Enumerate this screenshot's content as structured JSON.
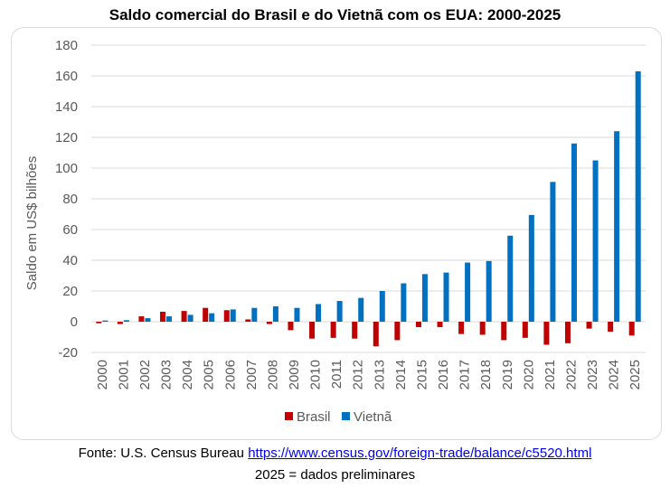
{
  "chart_data": {
    "type": "bar",
    "title": "Saldo comercial do Brasil e do Vietnã com os EUA: 2000-2025",
    "xlabel": "",
    "ylabel": "Saldo em US$ bilhões",
    "ylim": [
      -20,
      180
    ],
    "yticks": [
      -20,
      0,
      20,
      40,
      60,
      80,
      100,
      120,
      140,
      160,
      180
    ],
    "grid": true,
    "legend": "bottom",
    "categories": [
      "2000",
      "2001",
      "2002",
      "2003",
      "2004",
      "2005",
      "2006",
      "2007",
      "2008",
      "2009",
      "2010",
      "2011",
      "2012",
      "2013",
      "2014",
      "2015",
      "2016",
      "2017",
      "2018",
      "2019",
      "2020",
      "2021",
      "2022",
      "2023",
      "2024",
      "2025"
    ],
    "series": [
      {
        "name": "Brasil",
        "color": "#c00000",
        "values": [
          -1,
          -1.5,
          3.5,
          6.5,
          7,
          9,
          7.5,
          1.5,
          -1.5,
          -5.5,
          -11,
          -10.5,
          -11,
          -16,
          -12,
          -3.5,
          -3.5,
          -8,
          -8.5,
          -12,
          -10.5,
          -15,
          -14,
          -4.5,
          -6.5,
          -9
        ]
      },
      {
        "name": "Vietnã",
        "color": "#0070c0",
        "values": [
          0.8,
          1,
          2.3,
          3.5,
          4.5,
          5.5,
          8,
          9,
          10,
          9,
          11.5,
          13.5,
          15.5,
          20,
          25,
          31,
          32,
          38.5,
          39.5,
          56,
          69.5,
          91,
          116,
          105,
          124,
          163
        ]
      }
    ]
  },
  "footer": {
    "source_prefix": "Fonte: U.S. Census Bureau",
    "source_link": "https://www.census.gov/foreign-trade/balance/c5520.html",
    "note": "2025 = dados preliminares"
  }
}
